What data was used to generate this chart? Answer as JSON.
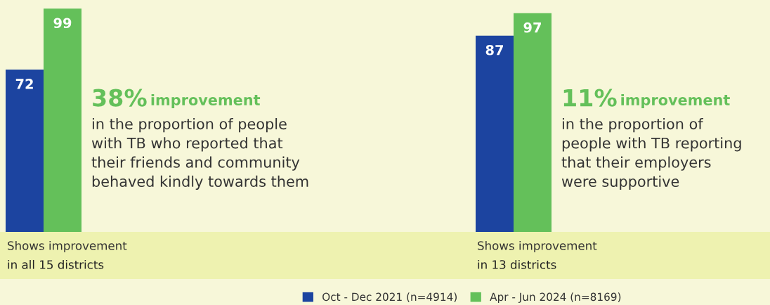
{
  "chart_data": [
    {
      "type": "bar",
      "categories": [
        null
      ],
      "data_labels": true,
      "legend": "bottom",
      "series": [
        {
          "name": "Oct - Dec 2021 (n=4914)",
          "color": "#1c44a0",
          "values": [
            72
          ]
        },
        {
          "name": "Apr - Jun 2024 (n=8169)",
          "color": "#64c05a",
          "values": [
            99
          ]
        }
      ],
      "annotations": [
        "38%",
        "improvement",
        "in the proportion of people\nwith TB who reported that\ntheir friends and community\nbehaved kindly towards them",
        "Shows improvement",
        "in all 15 districts"
      ]
    },
    {
      "type": "bar",
      "categories": [
        null
      ],
      "data_labels": true,
      "series": [
        {
          "color": "#1c44a0",
          "values": [
            87
          ]
        },
        {
          "color": "#64c05a",
          "values": [
            97
          ]
        }
      ],
      "annotations": [
        "11%",
        "improvement",
        "in the proportion of\npeople with TB reporting\nthat their employers\nwere supportive",
        "Shows improvement",
        "in 13 districts"
      ]
    }
  ]
}
